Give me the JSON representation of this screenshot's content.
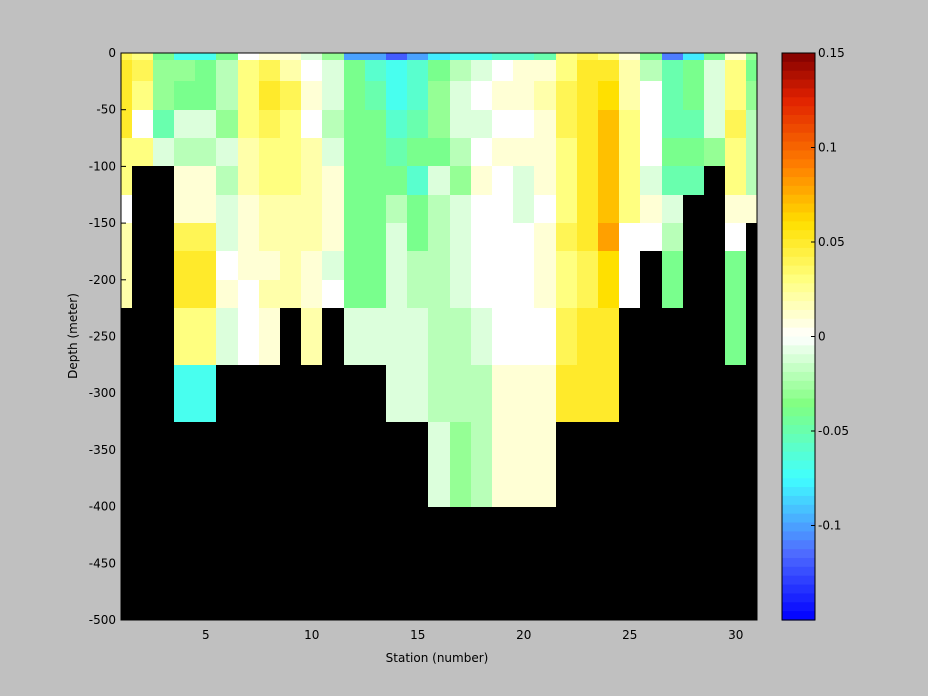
{
  "chart_data": {
    "type": "heatmap",
    "xlabel": "Station (number)",
    "ylabel": "Depth (meter)",
    "xlim": [
      1,
      31
    ],
    "ylim": [
      -500,
      0
    ],
    "x_ticks": [
      5,
      10,
      15,
      20,
      25,
      30
    ],
    "y_ticks": [
      0,
      -50,
      -100,
      -150,
      -200,
      -250,
      -300,
      -350,
      -400,
      -450,
      -500
    ],
    "colorbar": {
      "min": -0.15,
      "max": 0.15,
      "ticks": [
        0.15,
        0.1,
        0.05,
        0,
        -0.05,
        -0.1
      ],
      "tick_labels": [
        "0.15",
        "0.1",
        "0.05",
        "0",
        "-0.05",
        "-0.1"
      ],
      "colormap": "jet-white-center"
    },
    "mask_color": "#000000",
    "depth_bins": [
      0,
      -12.5,
      -37.5,
      -62.5,
      -87.5,
      -112.5,
      -137.5,
      -162.5,
      -187.5,
      -212.5,
      -237.5,
      -262.5,
      -287.5,
      -312.5,
      -337.5,
      -362.5,
      -387.5,
      -412.5,
      -437.5,
      -462.5,
      -487.5
    ],
    "stations": [
      1,
      2,
      3,
      4,
      5,
      6,
      7,
      8,
      9,
      10,
      11,
      12,
      13,
      14,
      15,
      16,
      17,
      18,
      19,
      20,
      21,
      22,
      23,
      24,
      25,
      26,
      27,
      28,
      29,
      30,
      31
    ],
    "values": [
      [
        0.04,
        0.03,
        -0.04,
        -0.07,
        -0.07,
        -0.04,
        0.0,
        0.01,
        0.01,
        -0.01,
        -0.03,
        -0.1,
        -0.1,
        -0.12,
        -0.1,
        -0.08,
        -0.07,
        -0.07,
        -0.06,
        -0.06,
        -0.05,
        0.03,
        0.04,
        0.03,
        0.01,
        -0.04,
        -0.11,
        -0.08,
        -0.04,
        0.01,
        -0.03
      ],
      [
        0.05,
        0.04,
        -0.03,
        -0.03,
        -0.04,
        -0.02,
        0.03,
        0.04,
        0.02,
        0.0,
        -0.01,
        -0.04,
        -0.06,
        -0.07,
        -0.06,
        -0.04,
        -0.02,
        -0.01,
        0.0,
        0.01,
        0.01,
        0.03,
        0.05,
        0.05,
        0.02,
        -0.02,
        -0.05,
        -0.04,
        -0.01,
        0.03,
        -0.04
      ],
      [
        0.05,
        0.03,
        -0.03,
        -0.04,
        -0.04,
        -0.02,
        0.03,
        0.05,
        0.04,
        0.01,
        -0.01,
        -0.04,
        -0.05,
        -0.07,
        -0.06,
        -0.03,
        -0.01,
        0.0,
        0.01,
        0.01,
        0.02,
        0.04,
        0.05,
        0.06,
        0.02,
        0.0,
        -0.05,
        -0.04,
        -0.01,
        0.03,
        -0.03
      ],
      [
        0.05,
        0.0,
        -0.05,
        -0.01,
        -0.01,
        -0.03,
        0.03,
        0.04,
        0.03,
        0.0,
        -0.02,
        -0.04,
        -0.04,
        -0.06,
        -0.05,
        -0.03,
        -0.01,
        -0.01,
        0.0,
        0.0,
        0.01,
        0.04,
        0.05,
        0.07,
        0.03,
        0.0,
        -0.05,
        -0.05,
        -0.01,
        0.04,
        -0.02
      ],
      [
        0.03,
        0.03,
        -0.01,
        -0.02,
        -0.02,
        -0.01,
        0.02,
        0.03,
        0.03,
        0.02,
        -0.01,
        -0.04,
        -0.04,
        -0.05,
        -0.04,
        -0.04,
        -0.02,
        0.0,
        0.01,
        0.01,
        0.01,
        0.03,
        0.05,
        0.07,
        0.03,
        0.0,
        -0.04,
        -0.04,
        -0.03,
        0.03,
        -0.02
      ],
      [
        0.03,
        null,
        null,
        0.01,
        0.01,
        -0.02,
        0.02,
        0.03,
        0.03,
        0.02,
        0.01,
        -0.04,
        -0.04,
        -0.04,
        -0.06,
        -0.01,
        -0.03,
        0.01,
        0.0,
        -0.01,
        0.01,
        0.03,
        0.05,
        0.07,
        0.03,
        -0.01,
        -0.05,
        -0.05,
        null,
        0.03,
        -0.02
      ],
      [
        0.0,
        null,
        null,
        0.01,
        0.01,
        -0.01,
        0.01,
        0.02,
        0.02,
        0.02,
        0.01,
        -0.04,
        -0.04,
        -0.02,
        -0.04,
        -0.02,
        -0.01,
        0.0,
        0.0,
        -0.01,
        0.0,
        0.03,
        0.05,
        0.07,
        0.03,
        0.01,
        -0.01,
        null,
        null,
        0.01,
        0.01
      ],
      [
        0.02,
        null,
        null,
        0.04,
        0.04,
        -0.01,
        0.01,
        0.02,
        0.02,
        0.02,
        0.01,
        -0.04,
        -0.04,
        -0.01,
        -0.04,
        -0.02,
        -0.01,
        0.0,
        0.0,
        0.0,
        0.01,
        0.04,
        0.05,
        0.08,
        0.0,
        0.0,
        -0.02,
        null,
        null,
        0.0,
        null
      ],
      [
        0.02,
        null,
        null,
        0.05,
        0.05,
        0.0,
        0.01,
        0.01,
        0.02,
        0.01,
        -0.01,
        -0.04,
        -0.04,
        -0.01,
        -0.02,
        -0.02,
        -0.01,
        0.0,
        0.0,
        0.0,
        0.01,
        0.03,
        0.04,
        0.06,
        0.0,
        null,
        -0.04,
        null,
        null,
        -0.04,
        null
      ],
      [
        0.02,
        null,
        null,
        0.05,
        0.05,
        0.01,
        0.0,
        0.02,
        0.02,
        0.01,
        0.0,
        -0.04,
        -0.04,
        -0.01,
        -0.02,
        -0.02,
        -0.01,
        0.0,
        0.0,
        0.0,
        0.01,
        0.03,
        0.04,
        0.06,
        0.0,
        null,
        -0.04,
        null,
        null,
        -0.04,
        null
      ],
      [
        null,
        null,
        null,
        0.03,
        0.03,
        -0.01,
        0.0,
        0.01,
        null,
        0.02,
        null,
        -0.01,
        -0.01,
        -0.01,
        -0.01,
        -0.02,
        -0.02,
        -0.01,
        0.0,
        0.0,
        0.0,
        0.04,
        0.05,
        0.05,
        null,
        null,
        null,
        null,
        null,
        -0.04,
        null
      ],
      [
        null,
        null,
        null,
        0.03,
        0.03,
        -0.01,
        0.0,
        0.01,
        null,
        0.02,
        null,
        -0.01,
        -0.01,
        -0.01,
        -0.01,
        -0.02,
        -0.02,
        -0.01,
        0.0,
        0.0,
        0.0,
        0.04,
        0.05,
        0.05,
        null,
        null,
        null,
        null,
        null,
        -0.04,
        null
      ],
      [
        null,
        null,
        null,
        -0.07,
        -0.07,
        null,
        null,
        null,
        null,
        null,
        null,
        null,
        null,
        -0.01,
        -0.01,
        -0.02,
        -0.02,
        -0.02,
        0.01,
        0.01,
        0.01,
        0.05,
        0.05,
        0.05,
        null,
        null,
        null,
        null,
        null,
        null,
        null
      ],
      [
        null,
        null,
        null,
        -0.07,
        -0.07,
        null,
        null,
        null,
        null,
        null,
        null,
        null,
        null,
        -0.01,
        -0.01,
        -0.02,
        -0.02,
        -0.02,
        0.01,
        0.01,
        0.01,
        0.05,
        0.05,
        0.05,
        null,
        null,
        null,
        null,
        null,
        null,
        null
      ],
      [
        null,
        null,
        null,
        null,
        null,
        null,
        null,
        null,
        null,
        null,
        null,
        null,
        null,
        null,
        null,
        -0.01,
        -0.03,
        -0.02,
        0.01,
        0.01,
        0.01,
        null,
        null,
        null,
        null,
        null,
        null,
        null,
        null,
        null,
        null
      ],
      [
        null,
        null,
        null,
        null,
        null,
        null,
        null,
        null,
        null,
        null,
        null,
        null,
        null,
        null,
        null,
        -0.01,
        -0.03,
        -0.02,
        0.01,
        0.01,
        0.01,
        null,
        null,
        null,
        null,
        null,
        null,
        null,
        null,
        null,
        null
      ],
      [
        null,
        null,
        null,
        null,
        null,
        null,
        null,
        null,
        null,
        null,
        null,
        null,
        null,
        null,
        null,
        -0.01,
        -0.03,
        -0.02,
        0.01,
        0.01,
        0.01,
        null,
        null,
        null,
        null,
        null,
        null,
        null,
        null,
        null,
        null
      ],
      [
        null,
        null,
        null,
        null,
        null,
        null,
        null,
        null,
        null,
        null,
        null,
        null,
        null,
        null,
        null,
        null,
        null,
        null,
        null,
        null,
        null,
        null,
        null,
        null,
        null,
        null,
        null,
        null,
        null,
        null,
        null
      ],
      [
        null,
        null,
        null,
        null,
        null,
        null,
        null,
        null,
        null,
        null,
        null,
        null,
        null,
        null,
        null,
        null,
        null,
        null,
        null,
        null,
        null,
        null,
        null,
        null,
        null,
        null,
        null,
        null,
        null,
        null,
        null
      ],
      [
        null,
        null,
        null,
        null,
        null,
        null,
        null,
        null,
        null,
        null,
        null,
        null,
        null,
        null,
        null,
        null,
        null,
        null,
        null,
        null,
        null,
        null,
        null,
        null,
        null,
        null,
        null,
        null,
        null,
        null,
        null
      ],
      [
        null,
        null,
        null,
        null,
        null,
        null,
        null,
        null,
        null,
        null,
        null,
        null,
        null,
        null,
        null,
        null,
        null,
        null,
        null,
        null,
        null,
        null,
        null,
        null,
        null,
        null,
        null,
        null,
        null,
        null,
        null
      ]
    ]
  }
}
